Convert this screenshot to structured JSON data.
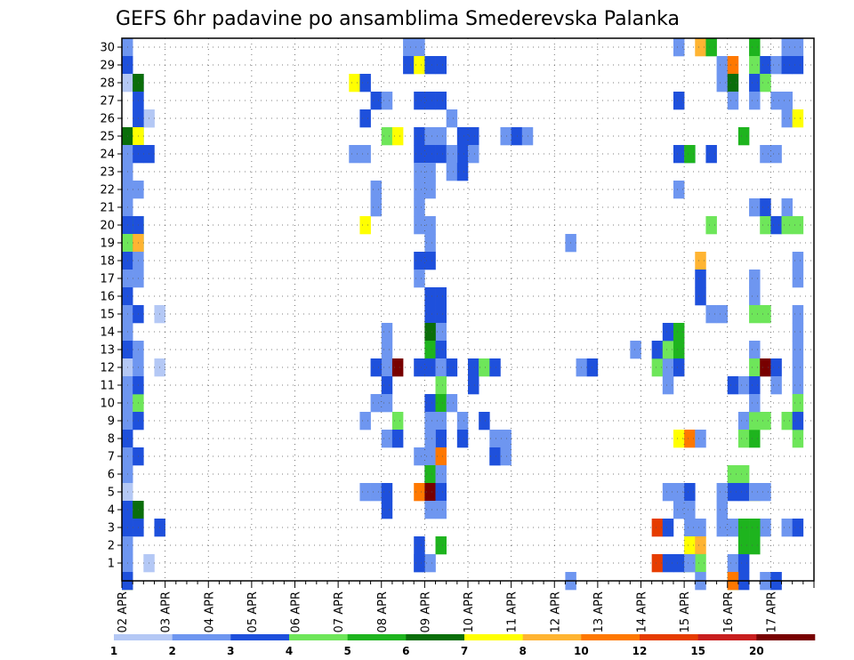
{
  "chart_data": {
    "type": "heatmap",
    "title": "GEFS 6hr padavine po ansamblima Smederevska Palanka",
    "xlabel": "",
    "ylabel": "",
    "x_dates": [
      "02 APR",
      "03 APR",
      "04 APR",
      "05 APR",
      "06 APR",
      "07 APR",
      "08 APR",
      "09 APR",
      "10 APR",
      "11 APR",
      "12 APR",
      "13 APR",
      "14 APR",
      "15 APR",
      "16 APR",
      "17 APR"
    ],
    "x_step": "6hr",
    "y_members": [
      1,
      2,
      3,
      4,
      5,
      6,
      7,
      8,
      9,
      10,
      11,
      12,
      13,
      14,
      15,
      16,
      17,
      18,
      19,
      20,
      21,
      22,
      23,
      24,
      25,
      26,
      27,
      28,
      29,
      30
    ],
    "ylim": [
      0,
      30
    ],
    "grid": true,
    "colorbar": {
      "labels": [
        "1",
        "2",
        "3",
        "4",
        "5",
        "6",
        "7",
        "8",
        "10",
        "12",
        "15",
        "20"
      ],
      "colors": [
        "#b4c8f5",
        "#6e96f0",
        "#1e50dc",
        "#6ee65a",
        "#1eb41e",
        "#0a6e0a",
        "#ffff00",
        "#ffb432",
        "#ff7800",
        "#e63c00",
        "#c81e1e",
        "#780000"
      ]
    },
    "cells": [
      [
        1,
        0,
        30
      ],
      [
        2,
        0,
        29
      ],
      [
        0,
        0,
        28
      ],
      [
        2,
        1,
        28
      ],
      [
        1,
        1,
        27
      ],
      [
        1,
        1,
        26
      ],
      [
        0,
        2,
        26
      ],
      [
        5,
        0,
        25
      ],
      [
        1,
        0,
        24
      ],
      [
        1,
        0,
        23
      ],
      [
        1,
        0,
        22
      ],
      [
        1,
        0,
        21
      ],
      [
        4,
        0,
        20
      ],
      [
        2,
        0,
        20
      ],
      [
        1,
        0,
        19
      ],
      [
        3,
        0,
        19
      ],
      [
        2,
        0,
        18
      ],
      [
        1,
        0,
        17
      ],
      [
        2,
        0,
        16
      ],
      [
        1,
        0,
        15
      ],
      [
        0,
        0,
        14
      ],
      [
        1,
        0,
        14
      ],
      [
        2,
        0,
        13
      ],
      [
        0,
        0,
        12
      ],
      [
        1,
        0,
        11
      ],
      [
        1,
        0,
        10
      ],
      [
        3,
        1,
        10
      ],
      [
        3,
        0,
        9
      ],
      [
        1,
        0,
        9
      ],
      [
        2,
        0,
        8
      ],
      [
        1,
        0,
        7
      ],
      [
        1,
        0,
        6
      ],
      [
        0,
        0,
        5
      ],
      [
        2,
        0,
        4
      ],
      [
        5,
        1,
        4
      ],
      [
        2,
        0,
        3
      ],
      [
        2,
        1,
        3
      ],
      [
        1,
        0,
        2
      ],
      [
        1,
        0,
        1
      ],
      [
        6,
        0,
        0
      ],
      [
        2,
        0,
        0
      ],
      [
        0,
        2,
        1
      ],
      [
        0,
        2,
        26
      ],
      [
        2,
        3,
        3
      ],
      [
        0,
        3,
        15
      ],
      [
        0,
        3,
        12
      ],
      [
        5,
        1,
        28
      ],
      [
        2,
        1,
        27
      ],
      [
        2,
        1,
        26
      ],
      [
        4,
        1,
        25
      ],
      [
        6,
        1,
        25
      ],
      [
        2,
        1,
        24
      ],
      [
        2,
        2,
        24
      ],
      [
        1,
        1,
        22
      ],
      [
        4,
        1,
        20
      ],
      [
        2,
        1,
        20
      ],
      [
        4,
        1,
        19
      ],
      [
        7,
        1,
        19
      ],
      [
        1,
        1,
        18
      ],
      [
        1,
        1,
        17
      ],
      [
        2,
        1,
        15
      ],
      [
        1,
        1,
        13
      ],
      [
        1,
        1,
        12
      ],
      [
        2,
        1,
        11
      ],
      [
        2,
        1,
        9
      ],
      [
        2,
        1,
        7
      ],
      [
        6,
        21,
        28
      ],
      [
        2,
        22,
        28
      ],
      [
        2,
        23,
        27
      ],
      [
        1,
        24,
        27
      ],
      [
        2,
        22,
        26
      ],
      [
        3,
        24,
        25
      ],
      [
        6,
        25,
        25
      ],
      [
        1,
        21,
        24
      ],
      [
        1,
        22,
        24
      ],
      [
        1,
        23,
        22
      ],
      [
        1,
        23,
        21
      ],
      [
        6,
        22,
        20
      ],
      [
        1,
        24,
        14
      ],
      [
        1,
        24,
        13
      ],
      [
        1,
        24,
        12
      ],
      [
        2,
        23,
        12
      ],
      [
        11,
        25,
        12
      ],
      [
        2,
        24,
        11
      ],
      [
        1,
        23,
        10
      ],
      [
        1,
        24,
        10
      ],
      [
        1,
        22,
        9
      ],
      [
        3,
        25,
        9
      ],
      [
        1,
        24,
        8
      ],
      [
        2,
        25,
        8
      ],
      [
        1,
        22,
        5
      ],
      [
        1,
        23,
        5
      ],
      [
        2,
        24,
        5
      ],
      [
        2,
        24,
        4
      ],
      [
        1,
        26,
        30
      ],
      [
        1,
        27,
        30
      ],
      [
        2,
        26,
        29
      ],
      [
        6,
        27,
        29
      ],
      [
        2,
        28,
        29
      ],
      [
        2,
        29,
        29
      ],
      [
        2,
        27,
        27
      ],
      [
        2,
        28,
        27
      ],
      [
        2,
        29,
        27
      ],
      [
        2,
        27,
        25
      ],
      [
        1,
        28,
        25
      ],
      [
        1,
        29,
        25
      ],
      [
        2,
        28,
        24
      ],
      [
        2,
        29,
        24
      ],
      [
        2,
        27,
        24
      ],
      [
        1,
        27,
        23
      ],
      [
        1,
        28,
        23
      ],
      [
        1,
        27,
        22
      ],
      [
        1,
        28,
        22
      ],
      [
        1,
        27,
        21
      ],
      [
        1,
        27,
        20
      ],
      [
        1,
        28,
        20
      ],
      [
        1,
        28,
        19
      ],
      [
        2,
        28,
        18
      ],
      [
        2,
        27,
        18
      ],
      [
        1,
        27,
        17
      ],
      [
        2,
        28,
        16
      ],
      [
        2,
        29,
        16
      ],
      [
        2,
        28,
        15
      ],
      [
        2,
        29,
        15
      ],
      [
        1,
        29,
        14
      ],
      [
        5,
        28,
        14
      ],
      [
        4,
        28,
        13
      ],
      [
        2,
        29,
        13
      ],
      [
        2,
        27,
        12
      ],
      [
        2,
        28,
        12
      ],
      [
        1,
        29,
        12
      ],
      [
        3,
        29,
        11
      ],
      [
        2,
        30,
        12
      ],
      [
        2,
        28,
        10
      ],
      [
        2,
        29,
        10
      ],
      [
        4,
        29,
        10
      ],
      [
        1,
        30,
        10
      ],
      [
        1,
        28,
        9
      ],
      [
        1,
        29,
        9
      ],
      [
        2,
        29,
        8
      ],
      [
        1,
        28,
        8
      ],
      [
        1,
        27,
        7
      ],
      [
        1,
        28,
        7
      ],
      [
        8,
        29,
        7
      ],
      [
        2,
        28,
        6
      ],
      [
        4,
        28,
        6
      ],
      [
        1,
        29,
        6
      ],
      [
        8,
        27,
        5
      ],
      [
        11,
        28,
        5
      ],
      [
        4,
        29,
        5
      ],
      [
        2,
        29,
        5
      ],
      [
        1,
        28,
        4
      ],
      [
        1,
        29,
        4
      ],
      [
        2,
        27,
        2
      ],
      [
        4,
        29,
        2
      ],
      [
        1,
        27,
        1
      ],
      [
        1,
        28,
        1
      ],
      [
        2,
        27,
        1
      ],
      [
        1,
        30,
        26
      ],
      [
        2,
        31,
        24
      ],
      [
        1,
        30,
        24
      ],
      [
        1,
        30,
        23
      ],
      [
        2,
        31,
        25
      ],
      [
        2,
        32,
        25
      ],
      [
        2,
        31,
        23
      ],
      [
        1,
        32,
        24
      ],
      [
        1,
        31,
        9
      ],
      [
        2,
        31,
        8
      ],
      [
        2,
        32,
        12
      ],
      [
        2,
        32,
        11
      ],
      [
        2,
        33,
        9
      ],
      [
        3,
        33,
        12
      ],
      [
        2,
        34,
        12
      ],
      [
        1,
        34,
        8
      ],
      [
        1,
        34,
        7
      ],
      [
        2,
        34,
        7
      ],
      [
        1,
        35,
        8
      ],
      [
        1,
        35,
        7
      ],
      [
        1,
        35,
        25
      ],
      [
        2,
        36,
        25
      ],
      [
        1,
        37,
        25
      ],
      [
        1,
        41,
        0
      ],
      [
        1,
        41,
        19
      ],
      [
        1,
        42,
        12
      ],
      [
        2,
        43,
        12
      ],
      [
        1,
        47,
        13
      ],
      [
        3,
        49,
        12
      ],
      [
        1,
        50,
        12
      ],
      [
        2,
        50,
        13
      ],
      [
        2,
        49,
        13
      ],
      [
        9,
        49,
        1
      ],
      [
        2,
        50,
        1
      ],
      [
        9,
        49,
        3
      ],
      [
        2,
        50,
        3
      ],
      [
        1,
        50,
        5
      ],
      [
        1,
        50,
        11
      ],
      [
        1,
        51,
        30
      ],
      [
        2,
        51,
        27
      ],
      [
        2,
        51,
        24
      ],
      [
        1,
        52,
        24
      ],
      [
        4,
        52,
        24
      ],
      [
        1,
        51,
        22
      ],
      [
        3,
        50,
        13
      ],
      [
        4,
        51,
        13
      ],
      [
        2,
        50,
        14
      ],
      [
        4,
        51,
        14
      ],
      [
        2,
        51,
        12
      ],
      [
        6,
        51,
        8
      ],
      [
        8,
        52,
        8
      ],
      [
        1,
        53,
        8
      ],
      [
        1,
        51,
        5
      ],
      [
        2,
        52,
        5
      ],
      [
        1,
        51,
        4
      ],
      [
        1,
        52,
        4
      ],
      [
        1,
        52,
        3
      ],
      [
        1,
        53,
        3
      ],
      [
        1,
        52,
        2
      ],
      [
        6,
        52,
        2
      ],
      [
        3,
        52,
        1
      ],
      [
        7,
        53,
        2
      ],
      [
        3,
        53,
        1
      ],
      [
        2,
        51,
        1
      ],
      [
        7,
        53,
        30
      ],
      [
        4,
        54,
        30
      ],
      [
        2,
        54,
        24
      ],
      [
        3,
        54,
        20
      ],
      [
        7,
        53,
        18
      ],
      [
        2,
        53,
        17
      ],
      [
        2,
        53,
        16
      ],
      [
        1,
        52,
        1
      ],
      [
        1,
        53,
        0
      ],
      [
        1,
        55,
        29
      ],
      [
        8,
        56,
        29
      ],
      [
        1,
        55,
        28
      ],
      [
        5,
        56,
        28
      ],
      [
        1,
        56,
        27
      ],
      [
        4,
        57,
        25
      ],
      [
        1,
        54,
        15
      ],
      [
        1,
        55,
        15
      ],
      [
        2,
        56,
        11
      ],
      [
        1,
        57,
        11
      ],
      [
        1,
        57,
        9
      ],
      [
        3,
        58,
        9
      ],
      [
        3,
        57,
        8
      ],
      [
        4,
        58,
        8
      ],
      [
        3,
        56,
        6
      ],
      [
        3,
        57,
        6
      ],
      [
        2,
        56,
        5
      ],
      [
        2,
        57,
        5
      ],
      [
        1,
        55,
        5
      ],
      [
        6,
        58,
        5
      ],
      [
        1,
        55,
        4
      ],
      [
        1,
        55,
        3
      ],
      [
        1,
        56,
        3
      ],
      [
        4,
        57,
        3
      ],
      [
        4,
        57,
        2
      ],
      [
        1,
        56,
        1
      ],
      [
        2,
        57,
        1
      ],
      [
        3,
        56,
        0
      ],
      [
        2,
        57,
        0
      ],
      [
        8,
        56,
        0
      ],
      [
        4,
        58,
        30
      ],
      [
        3,
        58,
        29
      ],
      [
        2,
        59,
        29
      ],
      [
        1,
        60,
        29
      ],
      [
        2,
        58,
        28
      ],
      [
        3,
        59,
        28
      ],
      [
        1,
        58,
        27
      ],
      [
        1,
        60,
        27
      ],
      [
        1,
        59,
        24
      ],
      [
        1,
        60,
        24
      ],
      [
        1,
        58,
        21
      ],
      [
        2,
        59,
        21
      ],
      [
        3,
        59,
        20
      ],
      [
        2,
        60,
        20
      ],
      [
        1,
        58,
        17
      ],
      [
        1,
        58,
        16
      ],
      [
        3,
        58,
        15
      ],
      [
        3,
        59,
        15
      ],
      [
        1,
        58,
        13
      ],
      [
        3,
        58,
        12
      ],
      [
        11,
        59,
        12
      ],
      [
        2,
        60,
        12
      ],
      [
        1,
        60,
        11
      ],
      [
        2,
        58,
        11
      ],
      [
        3,
        58,
        9
      ],
      [
        3,
        59,
        9
      ],
      [
        3,
        61,
        9
      ],
      [
        1,
        58,
        10
      ],
      [
        1,
        58,
        5
      ],
      [
        1,
        59,
        5
      ],
      [
        1,
        59,
        3
      ],
      [
        4,
        58,
        3
      ],
      [
        4,
        58,
        2
      ],
      [
        1,
        59,
        0
      ],
      [
        2,
        60,
        0
      ],
      [
        1,
        61,
        30
      ],
      [
        1,
        62,
        30
      ],
      [
        2,
        61,
        29
      ],
      [
        2,
        62,
        29
      ],
      [
        1,
        61,
        27
      ],
      [
        1,
        61,
        26
      ],
      [
        6,
        62,
        26
      ],
      [
        1,
        61,
        21
      ],
      [
        3,
        61,
        20
      ],
      [
        3,
        62,
        20
      ],
      [
        1,
        62,
        18
      ],
      [
        1,
        62,
        17
      ],
      [
        1,
        62,
        15
      ],
      [
        1,
        62,
        14
      ],
      [
        1,
        62,
        13
      ],
      [
        1,
        62,
        12
      ],
      [
        1,
        62,
        11
      ],
      [
        3,
        62,
        10
      ],
      [
        3,
        62,
        8
      ],
      [
        2,
        62,
        9
      ],
      [
        1,
        61,
        3
      ],
      [
        2,
        62,
        3
      ]
    ]
  }
}
